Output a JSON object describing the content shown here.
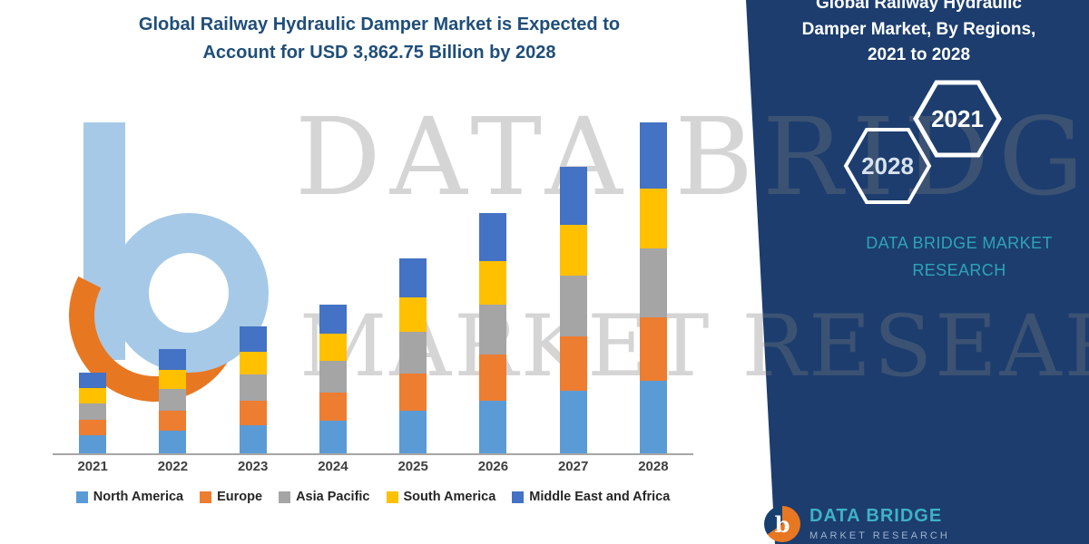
{
  "header": {
    "title_line1": "Global Railway Hydraulic Damper Market is Expected to",
    "title_line2": "Account for USD 3,862.75 Billion by 2028"
  },
  "watermark": {
    "line1": "DATA BRIDGE",
    "line2": "MARKET RESEARCH"
  },
  "side_panel": {
    "title_line1": "Global Railway Hydraulic",
    "title_line2": "Damper Market, By Regions,",
    "title_line3": "2021 to 2028",
    "hexagon_left": "2028",
    "hexagon_right": "2021",
    "brand_line1": "DATA BRIDGE MARKET",
    "brand_line2": "RESEARCH",
    "panel_color": "#1C3D6E",
    "accent_teal": "#2FA3B8"
  },
  "footer_logo": {
    "letter": "b",
    "name": "DATA BRIDGE",
    "subtext": "MARKET RESEARCH"
  },
  "chart_data": {
    "type": "bar",
    "stacked": true,
    "title": "Global Railway Hydraulic Damper Market is Expected to Account for USD 3,862.75 Billion by 2028",
    "categories": [
      "2021",
      "2022",
      "2023",
      "2024",
      "2025",
      "2026",
      "2027",
      "2028"
    ],
    "series": [
      {
        "name": "North America",
        "color": "#5B9BD5",
        "values": [
          5.4,
          6.9,
          8.5,
          9.9,
          13.0,
          16.0,
          19.0,
          22.0
        ]
      },
      {
        "name": "Europe",
        "color": "#ED7D31",
        "values": [
          4.7,
          6.0,
          7.3,
          8.6,
          11.2,
          13.8,
          16.4,
          19.0
        ]
      },
      {
        "name": "Asia Pacific",
        "color": "#A5A5A5",
        "values": [
          5.1,
          6.6,
          8.1,
          9.5,
          12.4,
          15.2,
          18.2,
          21.0
        ]
      },
      {
        "name": "South America",
        "color": "#FFC000",
        "values": [
          4.4,
          5.7,
          6.9,
          8.1,
          10.6,
          13.1,
          15.6,
          18.0
        ]
      },
      {
        "name": "Middle East and Africa",
        "color": "#4472C4",
        "values": [
          4.9,
          6.3,
          7.7,
          8.9,
          11.8,
          14.4,
          17.3,
          20.0
        ]
      }
    ],
    "ylim": [
      0,
      100
    ],
    "grid": false,
    "legend_position": "bottom",
    "xlabel": "",
    "ylabel": ""
  }
}
